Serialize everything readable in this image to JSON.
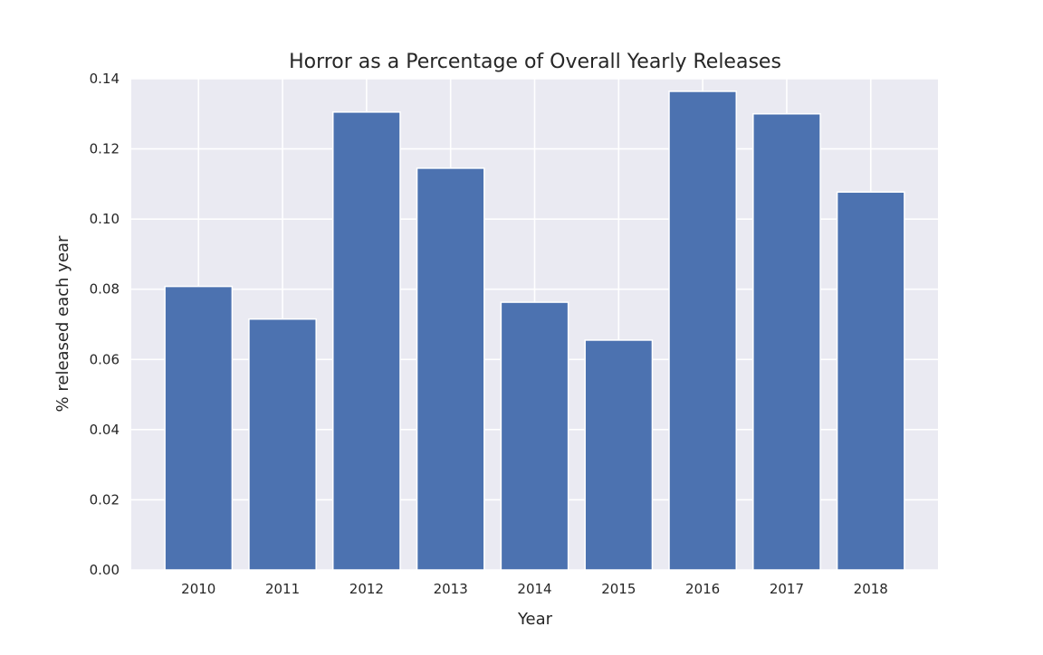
{
  "chart_data": {
    "type": "bar",
    "title": "Horror as a Percentage of Overall Yearly Releases",
    "xlabel": "Year",
    "ylabel": "% released each year",
    "categories": [
      "2010",
      "2011",
      "2012",
      "2013",
      "2014",
      "2015",
      "2016",
      "2017",
      "2018"
    ],
    "values": [
      0.0808,
      0.0715,
      0.1305,
      0.1145,
      0.0763,
      0.0655,
      0.1364,
      0.13,
      0.1077
    ],
    "ylim": [
      0,
      0.14
    ],
    "yticks": [
      "0.00",
      "0.02",
      "0.04",
      "0.06",
      "0.08",
      "0.10",
      "0.12",
      "0.14"
    ],
    "grid": true,
    "colors": {
      "bar": "#4c72b0",
      "background": "#eaeaf2",
      "grid": "#ffffff"
    }
  }
}
